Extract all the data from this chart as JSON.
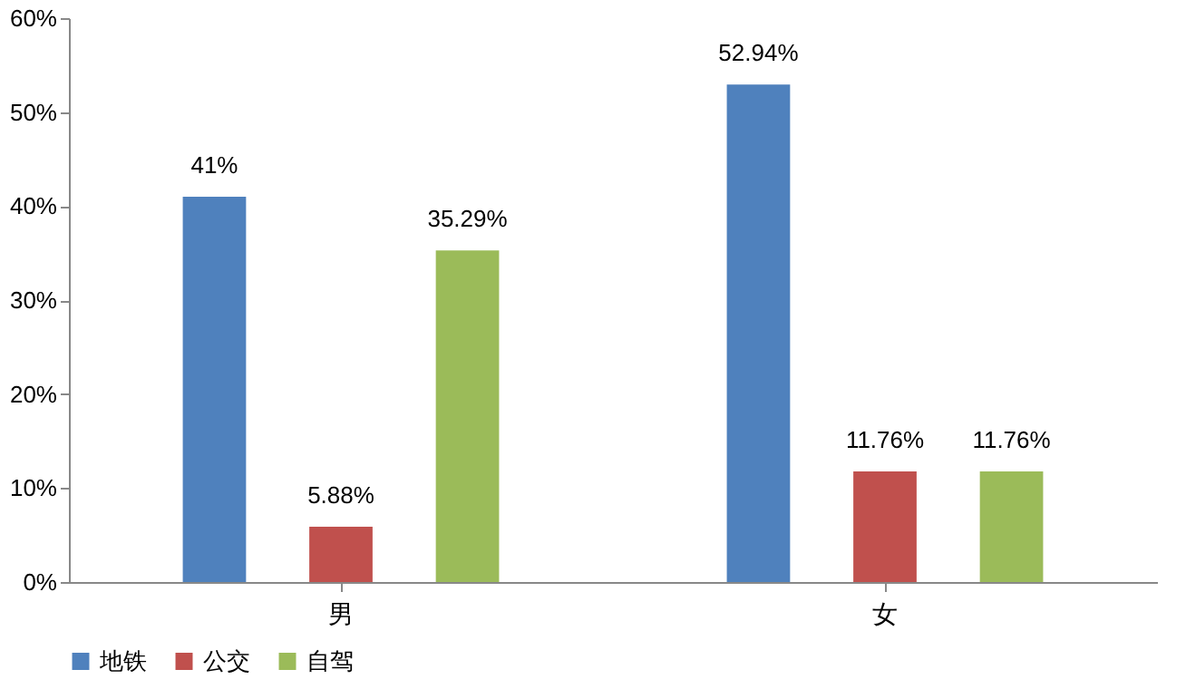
{
  "chart_data": {
    "type": "bar",
    "categories": [
      "男",
      "女"
    ],
    "series": [
      {
        "name": "地铁",
        "color": "#4f81bd",
        "values": [
          41,
          52.94
        ],
        "value_labels": [
          "41%",
          "52.94%"
        ]
      },
      {
        "name": "公交",
        "color": "#c0504d",
        "values": [
          5.88,
          11.76
        ],
        "value_labels": [
          "5.88%",
          "11.76%"
        ]
      },
      {
        "name": "自驾",
        "color": "#9bbb59",
        "values": [
          35.29,
          11.76
        ],
        "value_labels": [
          "35.29%",
          "11.76%"
        ]
      }
    ],
    "ylim": [
      0,
      60
    ],
    "yticks": [
      {
        "value": 0,
        "label": "0%"
      },
      {
        "value": 10,
        "label": "10%"
      },
      {
        "value": 20,
        "label": "20%"
      },
      {
        "value": 30,
        "label": "30%"
      },
      {
        "value": 40,
        "label": "40%"
      },
      {
        "value": 50,
        "label": "50%"
      },
      {
        "value": 60,
        "label": "60%"
      }
    ],
    "grid": false,
    "legend": "bottom"
  }
}
